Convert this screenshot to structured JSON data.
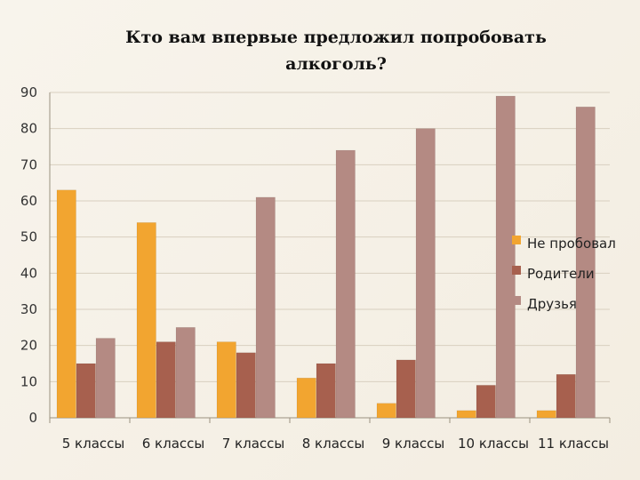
{
  "chart_data": {
    "type": "bar",
    "title_lines": [
      "Кто вам впервые предложил попробовать",
      "алкоголь?"
    ],
    "categories": [
      "5 классы",
      "6 классы",
      "7 классы",
      "8 классы",
      "9 классы",
      "10 классы",
      "11 классы"
    ],
    "series": [
      {
        "name": "Не пробовал",
        "color": "#f2a530",
        "values": [
          63,
          54,
          21,
          11,
          4,
          2,
          2
        ]
      },
      {
        "name": "Родители",
        "color": "#a7604e",
        "values": [
          15,
          21,
          18,
          15,
          16,
          9,
          12
        ]
      },
      {
        "name": "Друзья",
        "color": "#b48a83",
        "values": [
          22,
          25,
          61,
          74,
          80,
          89,
          86
        ]
      }
    ],
    "ylim": [
      0,
      90
    ],
    "yticks": [
      0,
      10,
      20,
      30,
      40,
      50,
      60,
      70,
      80,
      90
    ],
    "grid": true,
    "legend_position": "right"
  }
}
